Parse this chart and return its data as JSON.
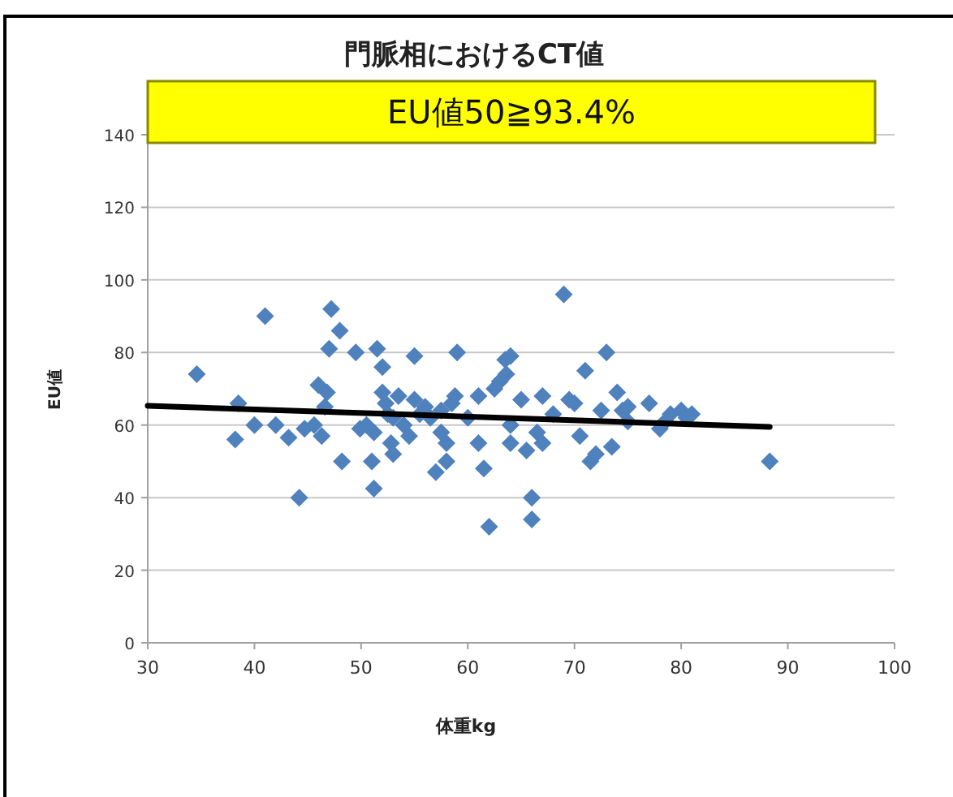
{
  "chart_data": {
    "type": "scatter",
    "title": "門脈相におけるCT値",
    "xlabel": "体重kg",
    "ylabel": "EU値",
    "annotations": [
      "EU値50≧93.4%"
    ],
    "xlim": [
      30,
      100
    ],
    "xticks": [
      30,
      40,
      50,
      60,
      70,
      80,
      90,
      100
    ],
    "ylim": [
      0,
      140
    ],
    "yticks": [
      0,
      20,
      40,
      60,
      80,
      100,
      120,
      140
    ],
    "grid": "y",
    "marker": "diamond",
    "series": [
      {
        "color": "#4f81bd",
        "x": [
          34.6,
          38.5,
          38.2,
          40,
          41,
          42,
          43.2,
          44.2,
          44.7,
          45.6,
          46,
          46.3,
          46.8,
          46.6,
          47,
          47.2,
          48,
          48.2,
          49.5,
          49.9,
          50.5,
          51,
          51.5,
          51.2,
          51.2,
          52,
          52,
          52.3,
          52.5,
          52.8,
          53,
          53.5,
          53,
          54,
          54.5,
          55,
          55,
          55.5,
          56,
          56.5,
          57,
          57.5,
          57.5,
          58,
          58,
          58.5,
          59,
          58.8,
          60,
          61,
          61,
          61.5,
          62,
          62.5,
          63,
          63.5,
          63.6,
          64,
          64,
          64,
          65,
          65.5,
          66,
          66,
          66.5,
          67,
          67,
          68,
          69,
          69.5,
          70,
          70.5,
          71,
          71.5,
          72,
          72.5,
          73,
          73.5,
          74,
          74.5,
          75,
          75,
          77,
          78,
          78.5,
          79,
          80,
          80.5,
          81,
          88.3
        ],
        "values": [
          74,
          66,
          56,
          60,
          90,
          60,
          56.5,
          40,
          59,
          60,
          71,
          57,
          69,
          65,
          81,
          92,
          86,
          50,
          80,
          59,
          60,
          50,
          81,
          58,
          42.5,
          69,
          76,
          66,
          63,
          55,
          52,
          68,
          62,
          60,
          57,
          79,
          67,
          63,
          65,
          62,
          47,
          58,
          64,
          55,
          50,
          66,
          80,
          68,
          62,
          68,
          55,
          48,
          32,
          70,
          72,
          78,
          74,
          79,
          60,
          55,
          67,
          53,
          34,
          40,
          58,
          55,
          68,
          63,
          96,
          67,
          66,
          57,
          75,
          50,
          52,
          64,
          80,
          54,
          69,
          64,
          61,
          65,
          66,
          59,
          61,
          63,
          64,
          62,
          63,
          50
        ]
      },
      {
        "type": "line",
        "color": "#000000",
        "marker": "none",
        "x": [
          30,
          88.3
        ],
        "values": [
          65.3,
          59.5
        ]
      }
    ]
  }
}
